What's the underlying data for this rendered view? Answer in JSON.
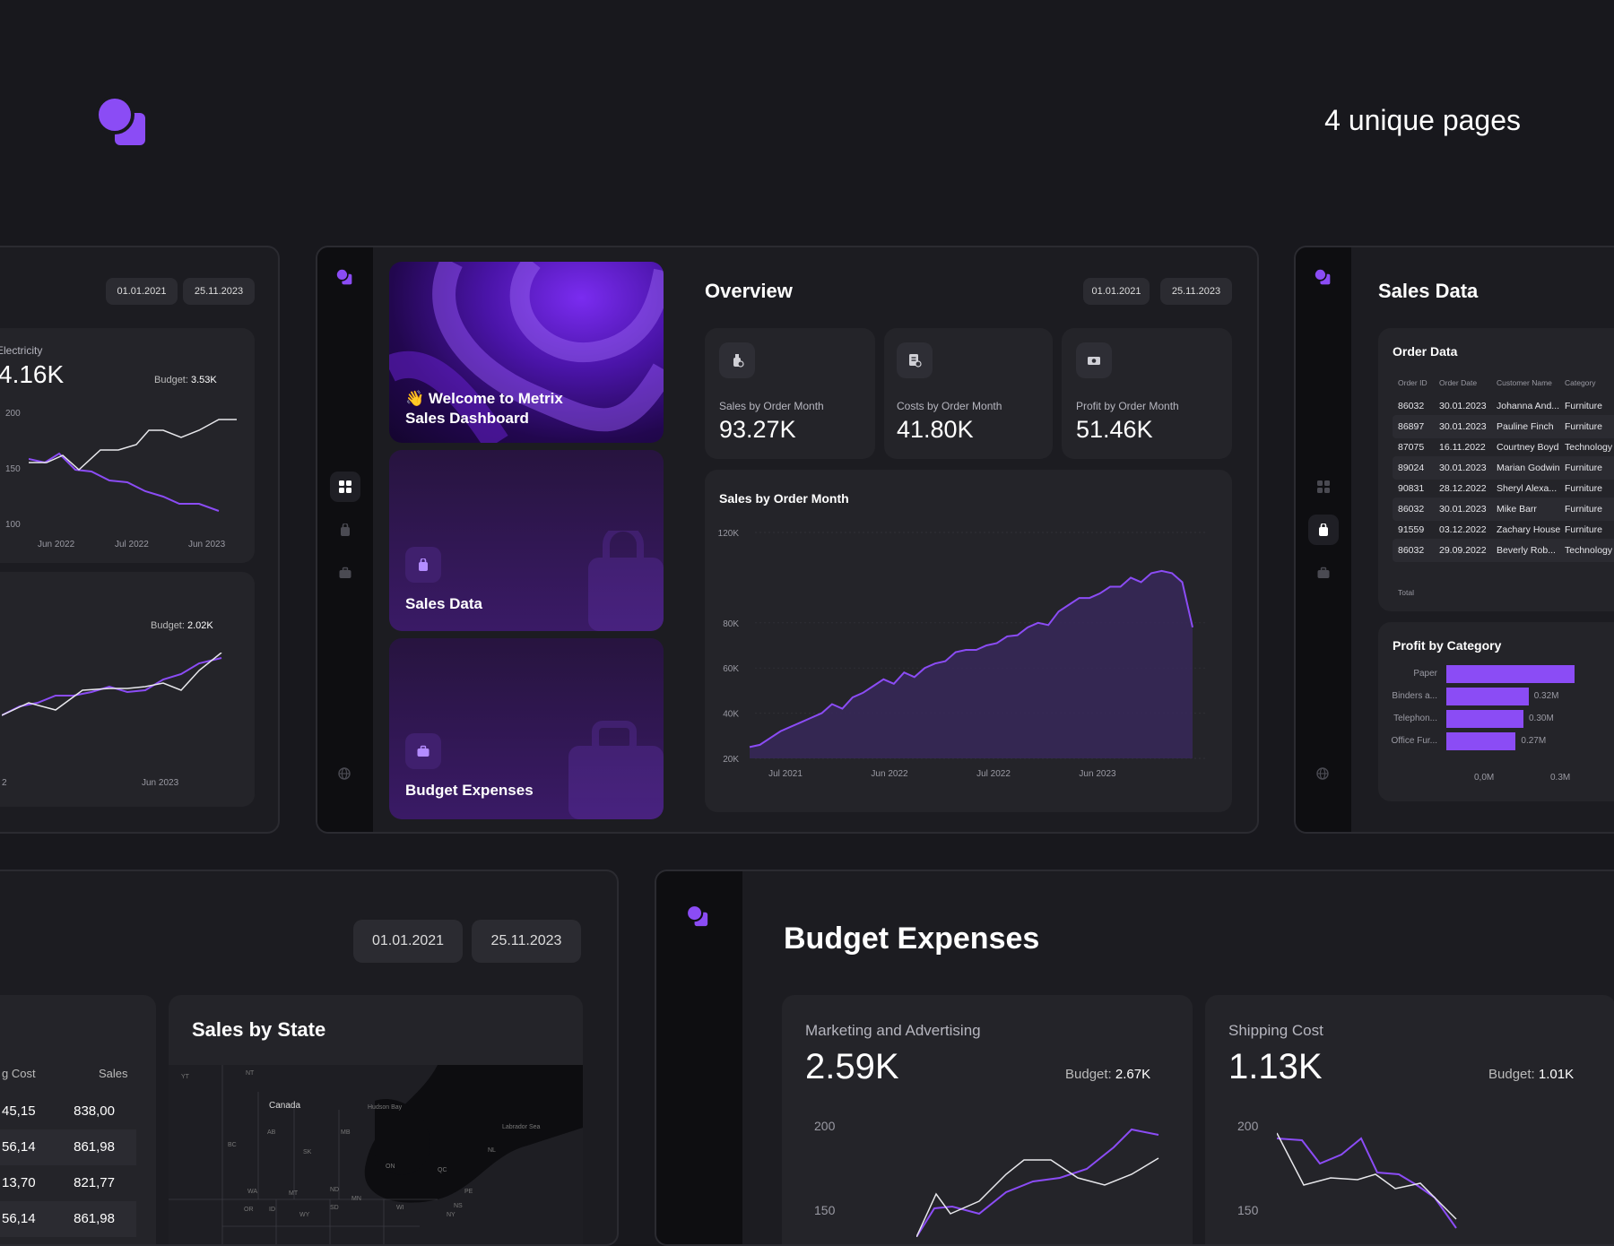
{
  "header": {
    "tagline": "4 unique pages"
  },
  "colors": {
    "accent": "#8b4cf5",
    "background": "#18181d",
    "panel": "#1c1c21",
    "card": "#242429"
  },
  "icons": [
    "logo-icon",
    "grid-icon",
    "bag-icon",
    "briefcase-icon",
    "globe-icon",
    "bottle-icon",
    "receipt-icon",
    "money-icon",
    "wave-emoji"
  ],
  "left_panel": {
    "date_from": "01.01.2021",
    "date_to": "25.11.2023",
    "card1": {
      "label": "Electricity",
      "value": "4.16K",
      "budget_label": "Budget:",
      "budget_value": "3.53K",
      "y_ticks": [
        "200",
        "150",
        "100"
      ],
      "x_ticks": [
        "Jun 2022",
        "Jul 2022",
        "Jun 2023"
      ]
    },
    "card2": {
      "budget_label": "Budget:",
      "budget_value": "2.02K",
      "x_ticks": [
        "2",
        "Jun 2023"
      ]
    }
  },
  "main_panel": {
    "tiles": {
      "welcome": {
        "emoji": "👋",
        "line1": "Welcome to Metrix",
        "line2": "Sales Dashboard"
      },
      "sales": "Sales Data",
      "budget": "Budget Expenses"
    },
    "title": "Overview",
    "date_from": "01.01.2021",
    "date_to": "25.11.2023",
    "kpis": [
      {
        "label": "Sales by Order Month",
        "value": "93.27K"
      },
      {
        "label": "Costs by Order Month",
        "value": "41.80K"
      },
      {
        "label": "Profit by Order Month",
        "value": "51.46K"
      }
    ],
    "chart_title": "Sales by Order Month"
  },
  "chart_data": {
    "type": "area",
    "title": "Sales by Order Month",
    "xlabel": "",
    "ylabel": "",
    "ylim": [
      20000,
      120000
    ],
    "y_ticks": [
      "120K",
      "80K",
      "60K",
      "40K",
      "20K"
    ],
    "x_ticks": [
      "Jul 2021",
      "Jun 2022",
      "Jul 2022",
      "Jun 2023"
    ],
    "series": [
      {
        "values": [
          25000,
          26000,
          29000,
          32000,
          34000,
          36000,
          38000,
          40000,
          44000,
          42000,
          47000,
          49000,
          52000,
          55000,
          53000,
          58000,
          56000,
          60000,
          62000,
          63000,
          67000,
          68000,
          68000,
          70000,
          71000,
          74000,
          74500,
          78000,
          80000,
          79000,
          85000,
          88000,
          91000,
          91000,
          93000,
          96000,
          96000,
          100000,
          98000,
          102000,
          103000,
          102000,
          98000,
          78000
        ]
      }
    ]
  },
  "sales_panel": {
    "title": "Sales Data",
    "order_title": "Order Data",
    "columns": [
      "Order ID",
      "Order Date",
      "Customer Name",
      "Category"
    ],
    "rows": [
      [
        "86032",
        "30.01.2023",
        "Johanna And...",
        "Furniture"
      ],
      [
        "86897",
        "30.01.2023",
        "Pauline Finch",
        "Furniture"
      ],
      [
        "87075",
        "16.11.2022",
        "Courtney Boyd",
        "Technology"
      ],
      [
        "89024",
        "30.01.2023",
        "Marian Godwin",
        "Furniture"
      ],
      [
        "90831",
        "28.12.2022",
        "Sheryl Alexa...",
        "Furniture"
      ],
      [
        "86032",
        "30.01.2023",
        "Mike Barr",
        "Furniture"
      ],
      [
        "91559",
        "03.12.2022",
        "Zachary House",
        "Furniture"
      ],
      [
        "86032",
        "29.09.2022",
        "Beverly Rob...",
        "Technology"
      ]
    ],
    "total_label": "Total",
    "profit_title": "Profit by Category",
    "profit_chart": {
      "type": "bar",
      "categories": [
        "Paper",
        "Binders a...",
        "Telephon...",
        "Office Fur..."
      ],
      "values": [
        0.5,
        0.32,
        0.3,
        0.27
      ],
      "value_labels": [
        "",
        "0.32M",
        "0.30M",
        "0.27M"
      ],
      "x_ticks": [
        "0,0M",
        "0.3M"
      ]
    }
  },
  "bottom_left": {
    "date_from": "01.01.2021",
    "date_to": "25.11.2023",
    "table_headers": [
      "g Cost",
      "Sales"
    ],
    "table_rows": [
      [
        "45,15",
        "838,00"
      ],
      [
        "56,14",
        "861,98"
      ],
      [
        "13,70",
        "821,77"
      ],
      [
        "56,14",
        "861,98"
      ]
    ],
    "map_title": "Sales by State",
    "map_labels": [
      "YT",
      "NT",
      "Canada",
      "Hudson Bay",
      "Labrador Sea",
      "BC",
      "AB",
      "SK",
      "MB",
      "ON",
      "QC",
      "NL",
      "PE",
      "WA",
      "MT",
      "ND",
      "MN",
      "NS",
      "OR",
      "ID",
      "WY",
      "SD",
      "WI",
      "NY"
    ]
  },
  "bottom_right": {
    "title": "Budget Expenses",
    "cards": [
      {
        "label": "Marketing and Advertising",
        "value": "2.59K",
        "budget_label": "Budget:",
        "budget_value": "2.67K",
        "y_ticks": [
          "200",
          "150"
        ]
      },
      {
        "label": "Shipping Cost",
        "value": "1.13K",
        "budget_label": "Budget:",
        "budget_value": "1.01K",
        "y_ticks": [
          "200",
          "150"
        ]
      }
    ]
  }
}
